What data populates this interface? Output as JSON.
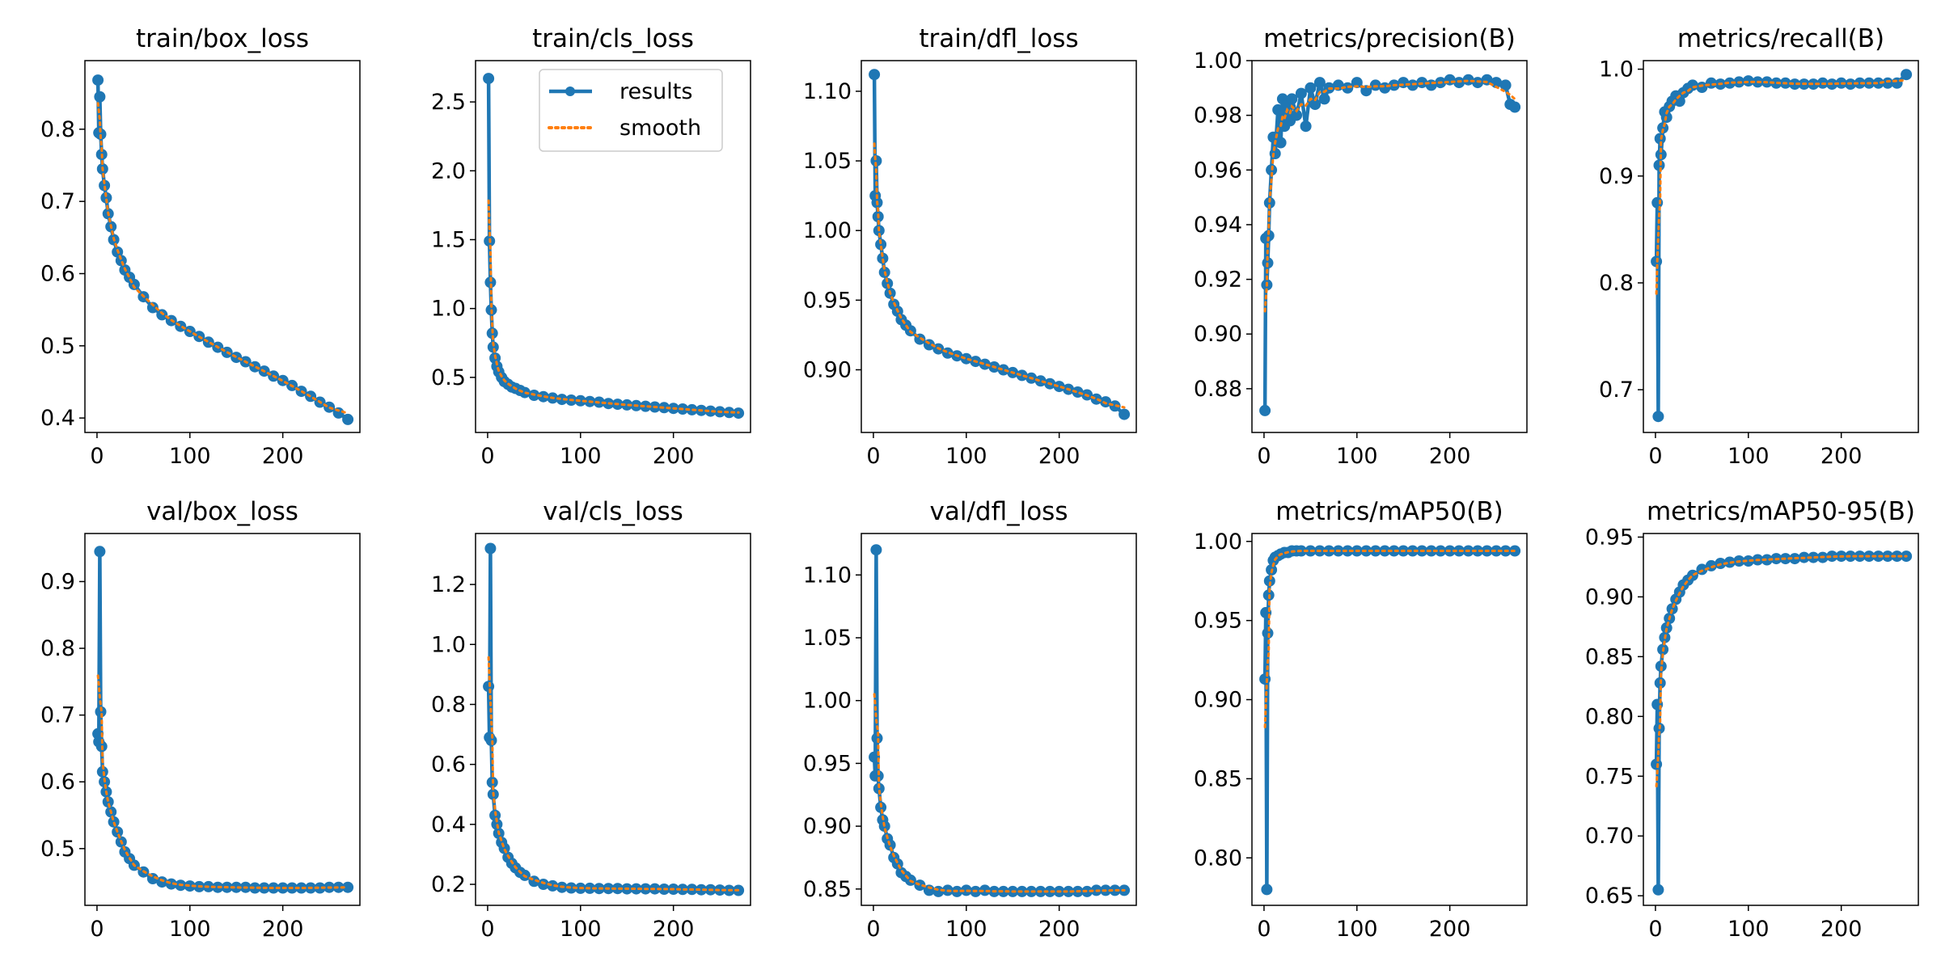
{
  "figure_title": "",
  "colors": {
    "results": "#1f77b4",
    "smooth": "#ff7f0e",
    "axes": "#000000",
    "background": "#ffffff"
  },
  "legend": {
    "entries": [
      "results",
      "smooth"
    ],
    "placement": "upper-right",
    "panel": "train/cls_loss"
  },
  "chart_data": [
    {
      "type": "line",
      "title": "train/box_loss",
      "xlabel": "",
      "ylabel": "",
      "xlim": [
        -13,
        283
      ],
      "ylim": [
        0.38,
        0.895
      ],
      "xticks": [
        0,
        100,
        200
      ],
      "yticks": [
        0.4,
        0.5,
        0.6,
        0.7,
        0.8
      ],
      "ytick_labels": [
        "0.4",
        "0.5",
        "0.6",
        "0.7",
        "0.8"
      ],
      "x": [
        1,
        2,
        3,
        4,
        5,
        6,
        8,
        10,
        12,
        15,
        18,
        22,
        26,
        30,
        35,
        40,
        50,
        60,
        70,
        80,
        90,
        100,
        110,
        120,
        130,
        140,
        150,
        160,
        170,
        180,
        190,
        200,
        210,
        220,
        230,
        240,
        250,
        260,
        270
      ],
      "series": [
        {
          "name": "results",
          "values": [
            0.868,
            0.795,
            0.845,
            0.793,
            0.765,
            0.745,
            0.722,
            0.705,
            0.683,
            0.665,
            0.647,
            0.63,
            0.618,
            0.605,
            0.595,
            0.585,
            0.568,
            0.553,
            0.543,
            0.535,
            0.527,
            0.52,
            0.513,
            0.505,
            0.498,
            0.491,
            0.484,
            0.478,
            0.471,
            0.465,
            0.458,
            0.452,
            0.445,
            0.437,
            0.43,
            0.422,
            0.415,
            0.407,
            0.398
          ]
        }
      ]
    },
    {
      "type": "line",
      "title": "train/cls_loss",
      "xlabel": "",
      "ylabel": "",
      "xlim": [
        -13,
        283
      ],
      "ylim": [
        0.1,
        2.8
      ],
      "xticks": [
        0,
        100,
        200
      ],
      "yticks": [
        0.5,
        1.0,
        1.5,
        2.0,
        2.5
      ],
      "ytick_labels": [
        "0.5",
        "1.0",
        "1.5",
        "2.0",
        "2.5"
      ],
      "x": [
        1,
        2,
        3,
        4,
        5,
        6,
        8,
        10,
        12,
        15,
        18,
        22,
        26,
        30,
        35,
        40,
        50,
        60,
        70,
        80,
        90,
        100,
        110,
        120,
        130,
        140,
        150,
        160,
        170,
        180,
        190,
        200,
        210,
        220,
        230,
        240,
        250,
        260,
        270
      ],
      "series": [
        {
          "name": "results",
          "values": [
            2.67,
            1.49,
            1.19,
            0.99,
            0.82,
            0.72,
            0.64,
            0.58,
            0.54,
            0.5,
            0.47,
            0.45,
            0.43,
            0.42,
            0.405,
            0.39,
            0.37,
            0.36,
            0.35,
            0.34,
            0.335,
            0.33,
            0.325,
            0.32,
            0.31,
            0.305,
            0.3,
            0.295,
            0.29,
            0.285,
            0.28,
            0.275,
            0.27,
            0.265,
            0.26,
            0.255,
            0.25,
            0.245,
            0.24
          ]
        }
      ]
    },
    {
      "type": "line",
      "title": "train/dfl_loss",
      "xlabel": "",
      "ylabel": "",
      "xlim": [
        -13,
        283
      ],
      "ylim": [
        0.855,
        1.122
      ],
      "xticks": [
        0,
        100,
        200
      ],
      "yticks": [
        0.9,
        0.95,
        1.0,
        1.05,
        1.1
      ],
      "ytick_labels": [
        "0.90",
        "0.95",
        "1.00",
        "1.05",
        "1.10"
      ],
      "x": [
        1,
        2,
        3,
        4,
        5,
        6,
        8,
        10,
        12,
        15,
        18,
        22,
        26,
        30,
        35,
        40,
        50,
        60,
        70,
        80,
        90,
        100,
        110,
        120,
        130,
        140,
        150,
        160,
        170,
        180,
        190,
        200,
        210,
        220,
        230,
        240,
        250,
        260,
        270
      ],
      "series": [
        {
          "name": "results",
          "values": [
            1.112,
            1.025,
            1.05,
            1.02,
            1.01,
            1.0,
            0.99,
            0.98,
            0.97,
            0.962,
            0.955,
            0.947,
            0.942,
            0.936,
            0.932,
            0.928,
            0.922,
            0.918,
            0.915,
            0.912,
            0.91,
            0.908,
            0.906,
            0.904,
            0.902,
            0.9,
            0.898,
            0.896,
            0.894,
            0.892,
            0.89,
            0.888,
            0.886,
            0.884,
            0.882,
            0.879,
            0.877,
            0.874,
            0.868
          ]
        }
      ]
    },
    {
      "type": "line",
      "title": "metrics/precision(B)",
      "xlabel": "",
      "ylabel": "",
      "xlim": [
        -13,
        283
      ],
      "ylim": [
        0.864,
        1.0
      ],
      "xticks": [
        0,
        100,
        200
      ],
      "yticks": [
        0.88,
        0.9,
        0.92,
        0.94,
        0.96,
        0.98,
        1.0
      ],
      "ytick_labels": [
        "0.88",
        "0.90",
        "0.92",
        "0.94",
        "0.96",
        "0.98",
        "1.00"
      ],
      "x": [
        1,
        2,
        3,
        4,
        5,
        6,
        8,
        10,
        12,
        15,
        18,
        20,
        22,
        25,
        28,
        30,
        35,
        40,
        45,
        50,
        55,
        60,
        65,
        70,
        80,
        90,
        100,
        110,
        120,
        130,
        140,
        150,
        160,
        170,
        180,
        190,
        200,
        210,
        220,
        230,
        240,
        250,
        260,
        265,
        270
      ],
      "series": [
        {
          "name": "results",
          "values": [
            0.872,
            0.935,
            0.918,
            0.926,
            0.936,
            0.948,
            0.96,
            0.972,
            0.966,
            0.982,
            0.97,
            0.986,
            0.976,
            0.984,
            0.978,
            0.986,
            0.98,
            0.988,
            0.976,
            0.99,
            0.984,
            0.992,
            0.986,
            0.99,
            0.991,
            0.99,
            0.992,
            0.989,
            0.991,
            0.99,
            0.991,
            0.992,
            0.991,
            0.992,
            0.991,
            0.992,
            0.993,
            0.992,
            0.993,
            0.992,
            0.993,
            0.992,
            0.991,
            0.984,
            0.983
          ]
        }
      ]
    },
    {
      "type": "line",
      "title": "metrics/recall(B)",
      "xlabel": "",
      "ylabel": "",
      "xlim": [
        -13,
        283
      ],
      "ylim": [
        0.66,
        1.008
      ],
      "xticks": [
        0,
        100,
        200
      ],
      "yticks": [
        0.7,
        0.8,
        0.9,
        1.0
      ],
      "ytick_labels": [
        "0.7",
        "0.8",
        "0.9",
        "1.0"
      ],
      "x": [
        1,
        2,
        3,
        4,
        5,
        6,
        8,
        10,
        12,
        15,
        18,
        22,
        26,
        30,
        35,
        40,
        50,
        60,
        70,
        80,
        90,
        100,
        110,
        120,
        130,
        140,
        150,
        160,
        170,
        180,
        190,
        200,
        210,
        220,
        230,
        240,
        250,
        260,
        270
      ],
      "series": [
        {
          "name": "results",
          "values": [
            0.82,
            0.875,
            0.675,
            0.91,
            0.935,
            0.92,
            0.945,
            0.96,
            0.955,
            0.965,
            0.97,
            0.975,
            0.97,
            0.978,
            0.982,
            0.985,
            0.983,
            0.987,
            0.986,
            0.987,
            0.988,
            0.989,
            0.988,
            0.988,
            0.987,
            0.987,
            0.986,
            0.986,
            0.986,
            0.987,
            0.986,
            0.987,
            0.986,
            0.987,
            0.987,
            0.987,
            0.987,
            0.987,
            0.995
          ]
        }
      ]
    },
    {
      "type": "line",
      "title": "val/box_loss",
      "xlabel": "",
      "ylabel": "",
      "xlim": [
        -13,
        283
      ],
      "ylim": [
        0.415,
        0.972
      ],
      "xticks": [
        0,
        100,
        200
      ],
      "yticks": [
        0.5,
        0.6,
        0.7,
        0.8,
        0.9
      ],
      "ytick_labels": [
        "0.5",
        "0.6",
        "0.7",
        "0.8",
        "0.9"
      ],
      "x": [
        1,
        2,
        3,
        4,
        5,
        6,
        8,
        10,
        12,
        15,
        18,
        22,
        26,
        30,
        35,
        40,
        50,
        60,
        70,
        80,
        90,
        100,
        110,
        120,
        130,
        140,
        150,
        160,
        170,
        180,
        190,
        200,
        210,
        220,
        230,
        240,
        250,
        260,
        270
      ],
      "series": [
        {
          "name": "results",
          "values": [
            0.672,
            0.66,
            0.945,
            0.705,
            0.653,
            0.615,
            0.6,
            0.585,
            0.57,
            0.555,
            0.54,
            0.525,
            0.51,
            0.495,
            0.485,
            0.475,
            0.465,
            0.455,
            0.45,
            0.447,
            0.445,
            0.444,
            0.443,
            0.443,
            0.442,
            0.442,
            0.442,
            0.442,
            0.441,
            0.441,
            0.441,
            0.441,
            0.441,
            0.441,
            0.441,
            0.441,
            0.442,
            0.442,
            0.442
          ]
        }
      ]
    },
    {
      "type": "line",
      "title": "val/cls_loss",
      "xlabel": "",
      "ylabel": "",
      "xlim": [
        -13,
        283
      ],
      "ylim": [
        0.13,
        1.37
      ],
      "xticks": [
        0,
        100,
        200
      ],
      "yticks": [
        0.2,
        0.4,
        0.6,
        0.8,
        1.0,
        1.2
      ],
      "ytick_labels": [
        "0.2",
        "0.4",
        "0.6",
        "0.8",
        "1.0",
        "1.2"
      ],
      "x": [
        1,
        2,
        3,
        4,
        5,
        6,
        8,
        10,
        12,
        15,
        18,
        22,
        26,
        30,
        35,
        40,
        50,
        60,
        70,
        80,
        90,
        100,
        110,
        120,
        130,
        140,
        150,
        160,
        170,
        180,
        190,
        200,
        210,
        220,
        230,
        240,
        250,
        260,
        270
      ],
      "series": [
        {
          "name": "results",
          "values": [
            0.86,
            0.69,
            1.32,
            0.68,
            0.54,
            0.5,
            0.43,
            0.4,
            0.37,
            0.34,
            0.32,
            0.29,
            0.27,
            0.255,
            0.24,
            0.23,
            0.21,
            0.2,
            0.195,
            0.19,
            0.188,
            0.187,
            0.187,
            0.186,
            0.186,
            0.186,
            0.185,
            0.185,
            0.185,
            0.185,
            0.184,
            0.184,
            0.183,
            0.183,
            0.182,
            0.182,
            0.181,
            0.18,
            0.18
          ]
        }
      ]
    },
    {
      "type": "line",
      "title": "val/dfl_loss",
      "xlabel": "",
      "ylabel": "",
      "xlim": [
        -13,
        283
      ],
      "ylim": [
        0.837,
        1.133
      ],
      "xticks": [
        0,
        100,
        200
      ],
      "yticks": [
        0.85,
        0.9,
        0.95,
        1.0,
        1.05,
        1.1
      ],
      "ytick_labels": [
        "0.85",
        "0.90",
        "0.95",
        "1.00",
        "1.05",
        "1.10"
      ],
      "x": [
        1,
        2,
        3,
        4,
        5,
        6,
        8,
        10,
        12,
        15,
        18,
        22,
        26,
        30,
        35,
        40,
        50,
        60,
        70,
        80,
        90,
        100,
        110,
        120,
        130,
        140,
        150,
        160,
        170,
        180,
        190,
        200,
        210,
        220,
        230,
        240,
        250,
        260,
        270
      ],
      "series": [
        {
          "name": "results",
          "values": [
            0.955,
            0.94,
            1.12,
            0.97,
            0.94,
            0.93,
            0.915,
            0.905,
            0.9,
            0.89,
            0.885,
            0.875,
            0.87,
            0.863,
            0.86,
            0.857,
            0.853,
            0.849,
            0.848,
            0.849,
            0.848,
            0.849,
            0.848,
            0.849,
            0.848,
            0.848,
            0.848,
            0.848,
            0.848,
            0.848,
            0.848,
            0.848,
            0.848,
            0.848,
            0.848,
            0.849,
            0.849,
            0.849,
            0.849
          ]
        }
      ]
    },
    {
      "type": "line",
      "title": "metrics/mAP50(B)",
      "xlabel": "",
      "ylabel": "",
      "xlim": [
        -13,
        283
      ],
      "ylim": [
        0.77,
        1.005
      ],
      "xticks": [
        0,
        100,
        200
      ],
      "yticks": [
        0.8,
        0.85,
        0.9,
        0.95,
        1.0
      ],
      "ytick_labels": [
        "0.80",
        "0.85",
        "0.90",
        "0.95",
        "1.00"
      ],
      "x": [
        1,
        2,
        3,
        4,
        5,
        6,
        8,
        10,
        12,
        15,
        18,
        22,
        26,
        30,
        35,
        40,
        50,
        60,
        70,
        80,
        90,
        100,
        110,
        120,
        130,
        140,
        150,
        160,
        170,
        180,
        190,
        200,
        210,
        220,
        230,
        240,
        250,
        260,
        270
      ],
      "series": [
        {
          "name": "results",
          "values": [
            0.913,
            0.955,
            0.78,
            0.942,
            0.966,
            0.975,
            0.982,
            0.988,
            0.99,
            0.991,
            0.992,
            0.993,
            0.993,
            0.994,
            0.994,
            0.994,
            0.994,
            0.994,
            0.994,
            0.994,
            0.994,
            0.994,
            0.994,
            0.994,
            0.994,
            0.994,
            0.994,
            0.994,
            0.994,
            0.994,
            0.994,
            0.994,
            0.994,
            0.994,
            0.994,
            0.994,
            0.994,
            0.994,
            0.994
          ]
        }
      ]
    },
    {
      "type": "line",
      "title": "metrics/mAP50-95(B)",
      "xlabel": "",
      "ylabel": "",
      "xlim": [
        -13,
        283
      ],
      "ylim": [
        0.642,
        0.953
      ],
      "xticks": [
        0,
        100,
        200
      ],
      "yticks": [
        0.65,
        0.7,
        0.75,
        0.8,
        0.85,
        0.9,
        0.95
      ],
      "ytick_labels": [
        "0.65",
        "0.70",
        "0.75",
        "0.80",
        "0.85",
        "0.90",
        "0.95"
      ],
      "x": [
        1,
        2,
        3,
        4,
        5,
        6,
        8,
        10,
        12,
        15,
        18,
        22,
        26,
        30,
        35,
        40,
        50,
        60,
        70,
        80,
        90,
        100,
        110,
        120,
        130,
        140,
        150,
        160,
        170,
        180,
        190,
        200,
        210,
        220,
        230,
        240,
        250,
        260,
        270
      ],
      "series": [
        {
          "name": "results",
          "values": [
            0.76,
            0.81,
            0.655,
            0.79,
            0.828,
            0.842,
            0.856,
            0.866,
            0.874,
            0.882,
            0.89,
            0.898,
            0.904,
            0.91,
            0.914,
            0.918,
            0.923,
            0.926,
            0.928,
            0.929,
            0.93,
            0.93,
            0.931,
            0.931,
            0.932,
            0.932,
            0.932,
            0.933,
            0.933,
            0.933,
            0.934,
            0.934,
            0.934,
            0.934,
            0.934,
            0.934,
            0.934,
            0.934,
            0.934
          ]
        }
      ]
    }
  ]
}
